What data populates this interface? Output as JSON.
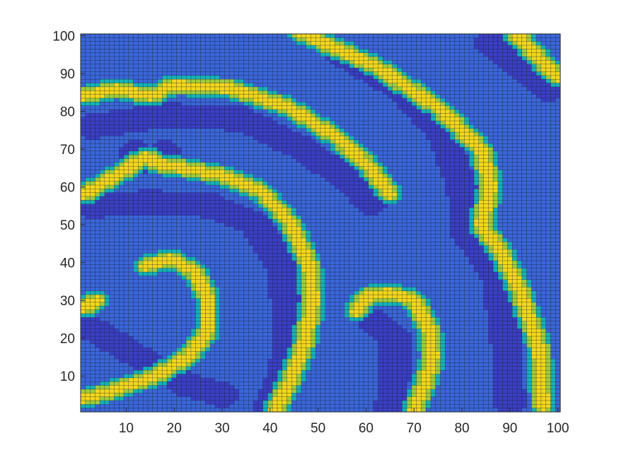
{
  "chart_data": {
    "type": "heatmap",
    "title": "",
    "xlabel": "",
    "ylabel": "",
    "xlim": [
      1,
      100
    ],
    "ylim": [
      1,
      100
    ],
    "grid_resolution": [
      100,
      100
    ],
    "grid_lines": true,
    "colormap": "parula",
    "colorbar": false,
    "values_note": "",
    "x_ticks": [
      10,
      20,
      30,
      40,
      50,
      60,
      70,
      80,
      90,
      100
    ],
    "y_ticks": [
      10,
      20,
      30,
      40,
      50,
      60,
      70,
      80,
      90,
      100
    ],
    "colors": {
      "trough": "#3a3fc4",
      "background": "#3a66da",
      "edge": "#15b2b8",
      "band_edge": "#9ecc3e",
      "band_peak": "#f2d71e",
      "grid_line": "#1a1a1a",
      "axis": "#262626"
    },
    "band_paths": [
      {
        "name": "arc-1",
        "points": [
          [
            1,
            84
          ],
          [
            8,
            86
          ],
          [
            15,
            84
          ],
          [
            20,
            87
          ],
          [
            32,
            86
          ],
          [
            44,
            81
          ],
          [
            54,
            73
          ],
          [
            61,
            65
          ],
          [
            65,
            58
          ]
        ]
      },
      {
        "name": "arc-2",
        "points": [
          [
            46,
            101
          ],
          [
            62,
            92
          ],
          [
            75,
            81
          ],
          [
            84,
            70
          ],
          [
            86,
            60
          ],
          [
            84,
            50
          ],
          [
            88,
            43
          ],
          [
            92,
            33
          ],
          [
            96,
            18
          ],
          [
            97,
            2
          ]
        ]
      },
      {
        "name": "arc-3",
        "points": [
          [
            91,
            101
          ],
          [
            96,
            94
          ],
          [
            100,
            89
          ]
        ]
      },
      {
        "name": "arc-4",
        "points": [
          [
            1,
            58
          ],
          [
            8,
            63
          ],
          [
            14,
            68
          ],
          [
            17,
            66
          ],
          [
            22,
            65
          ],
          [
            30,
            63
          ],
          [
            38,
            59
          ],
          [
            44,
            51
          ],
          [
            48,
            40
          ],
          [
            49,
            30
          ],
          [
            47,
            18
          ],
          [
            44,
            8
          ],
          [
            41,
            1
          ]
        ]
      },
      {
        "name": "arc-5",
        "points": [
          [
            14,
            39
          ],
          [
            19,
            41
          ],
          [
            24,
            38
          ],
          [
            27,
            31
          ],
          [
            27,
            22
          ],
          [
            23,
            15
          ],
          [
            16,
            10
          ],
          [
            7,
            6
          ],
          [
            1,
            4
          ]
        ]
      },
      {
        "name": "arc-6",
        "points": [
          [
            58,
            27
          ],
          [
            60,
            31
          ],
          [
            65,
            32
          ],
          [
            70,
            30
          ],
          [
            73,
            23
          ],
          [
            74,
            15
          ],
          [
            72,
            7
          ],
          [
            70,
            1
          ]
        ]
      },
      {
        "name": "arc-7",
        "points": [
          [
            1,
            28
          ],
          [
            4,
            30
          ]
        ]
      }
    ],
    "trough_paths": [
      {
        "name": "trough-1",
        "points": [
          [
            12,
            69
          ],
          [
            15,
            67
          ],
          [
            18,
            69
          ]
        ]
      },
      {
        "name": "trough-2",
        "points": [
          [
            1,
            24
          ],
          [
            10,
            17
          ],
          [
            22,
            8
          ],
          [
            30,
            5
          ]
        ]
      },
      {
        "name": "trough-3",
        "points": [
          [
            40,
            2
          ],
          [
            43,
            12
          ],
          [
            44,
            25
          ],
          [
            42,
            40
          ],
          [
            37,
            50
          ],
          [
            28,
            55
          ],
          [
            15,
            56
          ],
          [
            3,
            55
          ]
        ]
      },
      {
        "name": "trough-4",
        "points": [
          [
            55,
            95
          ],
          [
            67,
            86
          ],
          [
            76,
            74
          ],
          [
            80,
            60
          ],
          [
            81,
            48
          ],
          [
            87,
            37
          ],
          [
            89,
            22
          ],
          [
            90,
            3
          ]
        ]
      },
      {
        "name": "trough-5",
        "points": [
          [
            3,
            76
          ],
          [
            18,
            79
          ],
          [
            34,
            78
          ],
          [
            47,
            70
          ],
          [
            56,
            62
          ],
          [
            61,
            56
          ]
        ]
      },
      {
        "name": "trough-6",
        "points": [
          [
            62,
            24
          ],
          [
            66,
            20
          ],
          [
            66,
            10
          ],
          [
            65,
            2
          ]
        ]
      },
      {
        "name": "trough-7",
        "points": [
          [
            86,
            98
          ],
          [
            93,
            91
          ],
          [
            98,
            86
          ]
        ]
      }
    ]
  }
}
